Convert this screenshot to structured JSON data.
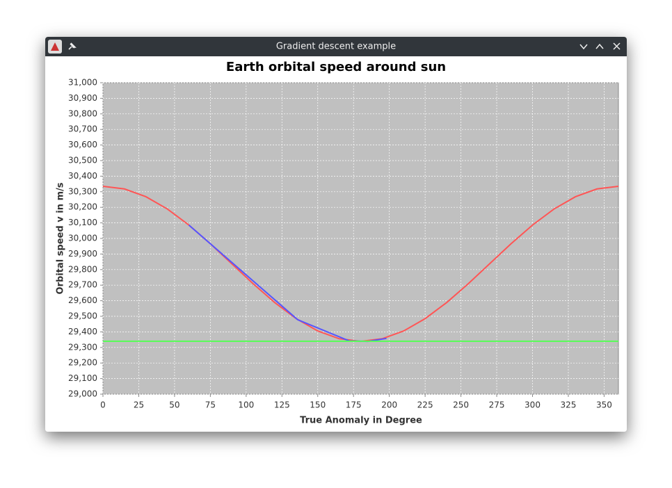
{
  "window": {
    "title": "Gradient descent example"
  },
  "chart_data": {
    "type": "line",
    "title": "Earth orbital speed around sun",
    "x_label": "True Anomaly in Degree",
    "y_label": "Orbital speed v in m/s",
    "xlim": [
      0,
      360
    ],
    "xticks": [
      0,
      25,
      50,
      75,
      100,
      125,
      150,
      175,
      200,
      225,
      250,
      275,
      300,
      325,
      350
    ],
    "ylim": [
      29000,
      31000
    ],
    "yticks": [
      {
        "value": 29000,
        "label": "29,000"
      },
      {
        "value": 29100,
        "label": "29,100"
      },
      {
        "value": 29200,
        "label": "29,200"
      },
      {
        "value": 29300,
        "label": "29,300"
      },
      {
        "value": 29400,
        "label": "29,400"
      },
      {
        "value": 29500,
        "label": "29,500"
      },
      {
        "value": 29600,
        "label": "29,600"
      },
      {
        "value": 29700,
        "label": "29,700"
      },
      {
        "value": 29800,
        "label": "29,800"
      },
      {
        "value": 29900,
        "label": "29,900"
      },
      {
        "value": 30000,
        "label": "30,000"
      },
      {
        "value": 30100,
        "label": "30,100"
      },
      {
        "value": 30200,
        "label": "30,200"
      },
      {
        "value": 30300,
        "label": "30,300"
      },
      {
        "value": 30400,
        "label": "30,400"
      },
      {
        "value": 30500,
        "label": "30,500"
      },
      {
        "value": 30600,
        "label": "30,600"
      },
      {
        "value": 30700,
        "label": "30,700"
      },
      {
        "value": 30800,
        "label": "30,800"
      },
      {
        "value": 30900,
        "label": "30,900"
      },
      {
        "value": 31000,
        "label": "31,000"
      }
    ],
    "grid": true,
    "series": [
      {
        "color": "#ff5555",
        "x": [
          0,
          15,
          30,
          45,
          60,
          75,
          90,
          105,
          120,
          135,
          150,
          165,
          180,
          195,
          210,
          225,
          240,
          255,
          270,
          285,
          300,
          315,
          330,
          345,
          360
        ],
        "values": [
          30335,
          30318,
          30268,
          30189,
          30086,
          29966,
          29837,
          29708,
          29588,
          29485,
          29406,
          29356,
          29339,
          29356,
          29406,
          29485,
          29588,
          29708,
          29837,
          29966,
          30086,
          30189,
          30268,
          30318,
          30335
        ]
      },
      {
        "color": "#5555ff",
        "x": [
          60,
          136,
          172,
          185,
          198
        ],
        "values": [
          30086,
          29478,
          29342,
          29339,
          29358
        ]
      },
      {
        "color": "#55ff55",
        "x": [
          0,
          360
        ],
        "values": [
          29340,
          29340
        ]
      }
    ]
  }
}
